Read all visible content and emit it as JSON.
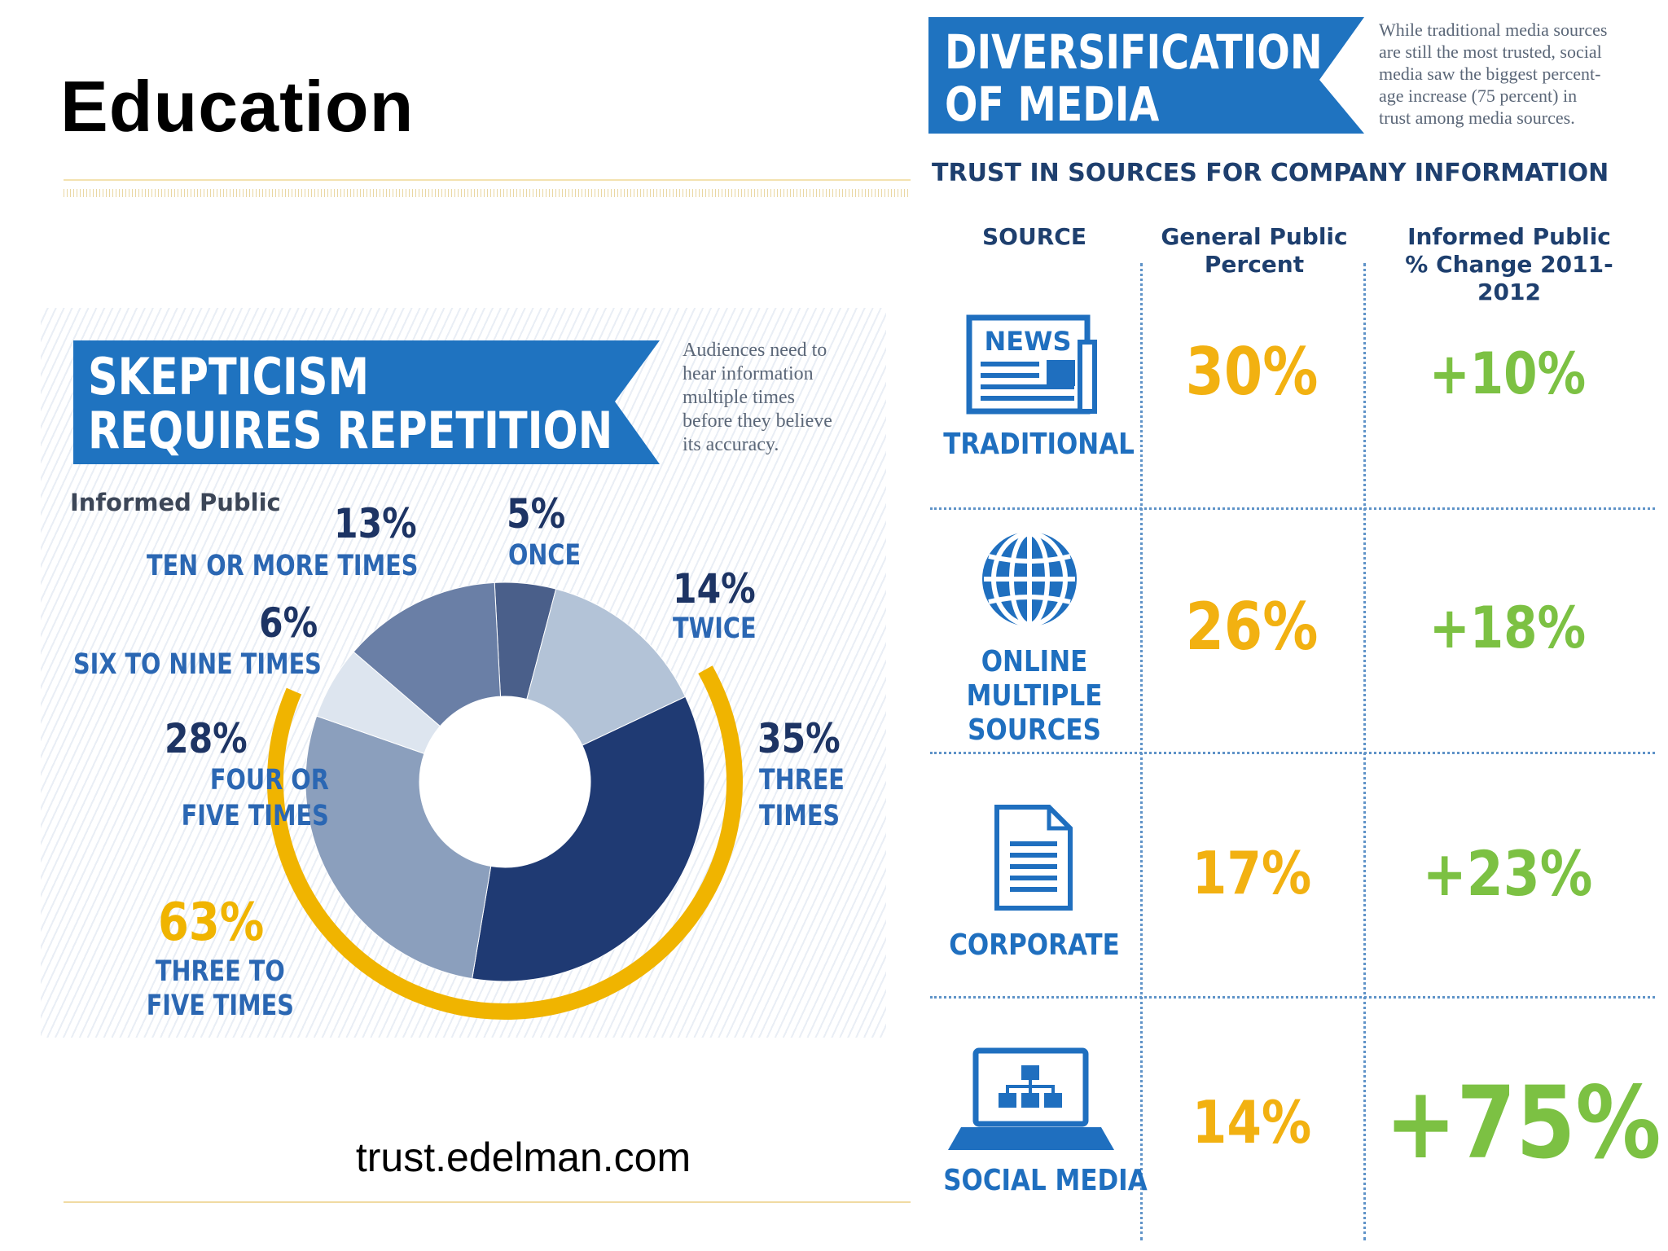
{
  "slide": {
    "title": "Education",
    "source_url": "trust.edelman.com"
  },
  "skepticism": {
    "banner_line1": "SKEPTICISM",
    "banner_line2": "REQUIRES REPETITION",
    "note_lines": [
      "Audiences need to",
      "hear information",
      "multiple times",
      "before they believe",
      "its accuracy."
    ],
    "audience_label": "Informed Public",
    "colors": {
      "banner": "#1f73c0",
      "gold": "#f0b400"
    },
    "chart_data": {
      "type": "pie",
      "subtitle": "Informed Public",
      "slices": [
        {
          "label": "ONCE",
          "value": 5,
          "color": "#4a5f8a"
        },
        {
          "label": "TWICE",
          "value": 14,
          "color": "#b3c3d7"
        },
        {
          "label": "THREE TIMES",
          "value": 35,
          "color": "#1f3a73"
        },
        {
          "label": "FOUR OR FIVE TIMES",
          "value": 28,
          "color": "#8b9fbd"
        },
        {
          "label": "SIX TO NINE TIMES",
          "value": 6,
          "color": "#dde5ef"
        },
        {
          "label": "TEN OR MORE TIMES",
          "value": 13,
          "color": "#6a7fa6"
        }
      ],
      "highlight": {
        "label": "THREE TO FIVE TIMES",
        "value": 63
      }
    },
    "labels": {
      "once": {
        "pct": "5%",
        "lines": [
          "ONCE"
        ]
      },
      "twice": {
        "pct": "14%",
        "lines": [
          "TWICE"
        ]
      },
      "three": {
        "pct": "35%",
        "lines": [
          "THREE",
          "TIMES"
        ]
      },
      "four_five": {
        "pct": "28%",
        "lines": [
          "FOUR OR",
          "FIVE TIMES"
        ]
      },
      "six_nine": {
        "pct": "6%",
        "lines": [
          "SIX TO NINE TIMES"
        ]
      },
      "ten_more": {
        "pct": "13%",
        "lines": [
          "TEN OR MORE TIMES"
        ]
      },
      "three_five": {
        "pct": "63%",
        "lines": [
          "THREE TO",
          "FIVE TIMES"
        ]
      }
    }
  },
  "diversification": {
    "banner_line1": "DIVERSIFICATION",
    "banner_line2": "OF MEDIA",
    "note_lines": [
      "While traditional media sources",
      "are still the most trusted, social",
      "media saw the biggest percent-",
      "age increase (75 percent) in",
      "trust among media sources."
    ],
    "subtitle": "TRUST IN SOURCES FOR COMPANY INFORMATION",
    "columns": {
      "source": "SOURCE",
      "general_line1": "General Public",
      "general_line2": "Percent",
      "informed_line1": "Informed Public",
      "informed_line2": "% Change 2011-2012"
    },
    "rows": [
      {
        "icon": "newspaper-icon",
        "icon_text": "NEWS",
        "label_lines": [
          "TRADITIONAL"
        ],
        "general": "30%",
        "informed": "+10%"
      },
      {
        "icon": "globe-icon",
        "label_lines": [
          "ONLINE",
          "MULTIPLE",
          "SOURCES"
        ],
        "general": "26%",
        "informed": "+18%"
      },
      {
        "icon": "document-icon",
        "label_lines": [
          "CORPORATE"
        ],
        "general": "17%",
        "informed": "+23%"
      },
      {
        "icon": "laptop-network-icon",
        "label_lines": [
          "SOCIAL MEDIA"
        ],
        "general": "14%",
        "informed": "+75%"
      }
    ],
    "colors": {
      "banner": "#1f73c0",
      "general": "#f2b111",
      "informed": "#7cc143",
      "label": "#1f6fbf"
    }
  }
}
